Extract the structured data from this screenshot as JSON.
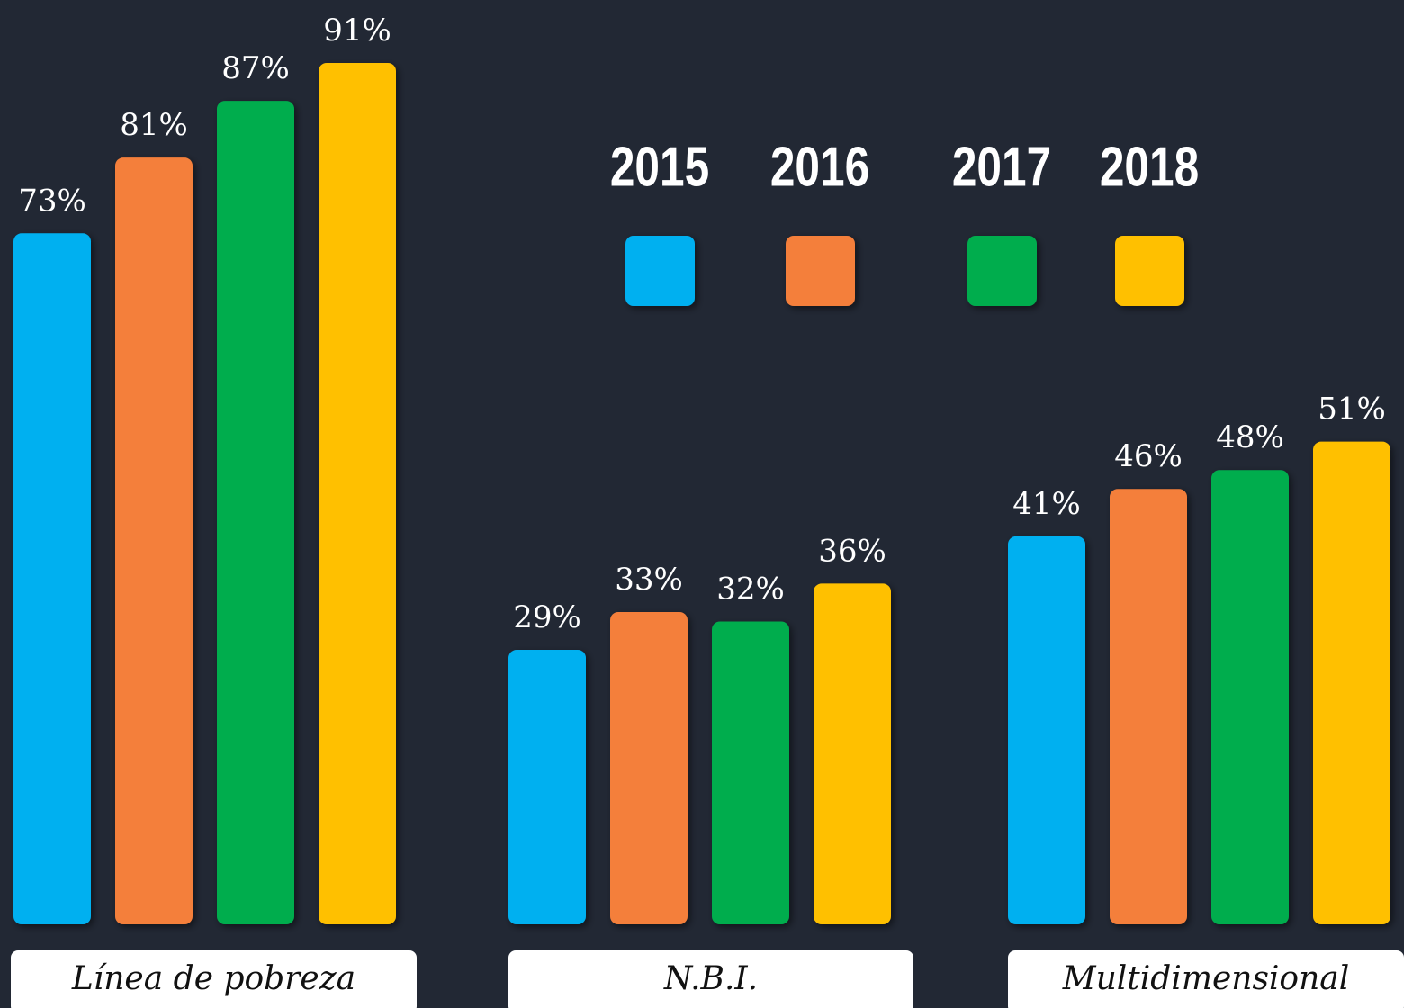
{
  "chart_data": {
    "type": "bar",
    "categories": [
      "Línea de pobreza",
      "N.B.I.",
      "Multidimensional"
    ],
    "series": [
      {
        "name": "2015",
        "color": "#00b0f0",
        "values": [
          73,
          29,
          41
        ],
        "value_labels": [
          "73%",
          "29%",
          "41%"
        ]
      },
      {
        "name": "2016",
        "color": "#f47f3a",
        "values": [
          81,
          33,
          46
        ],
        "value_labels": [
          "81%",
          "33%",
          "46%"
        ]
      },
      {
        "name": "2017",
        "color": "#00ad4e",
        "values": [
          87,
          32,
          48
        ],
        "value_labels": [
          "87%",
          "32%",
          "48%"
        ]
      },
      {
        "name": "2018",
        "color": "#ffc000",
        "values": [
          91,
          36,
          51
        ],
        "value_labels": [
          "91%",
          "36%",
          "51%"
        ]
      }
    ]
  }
}
